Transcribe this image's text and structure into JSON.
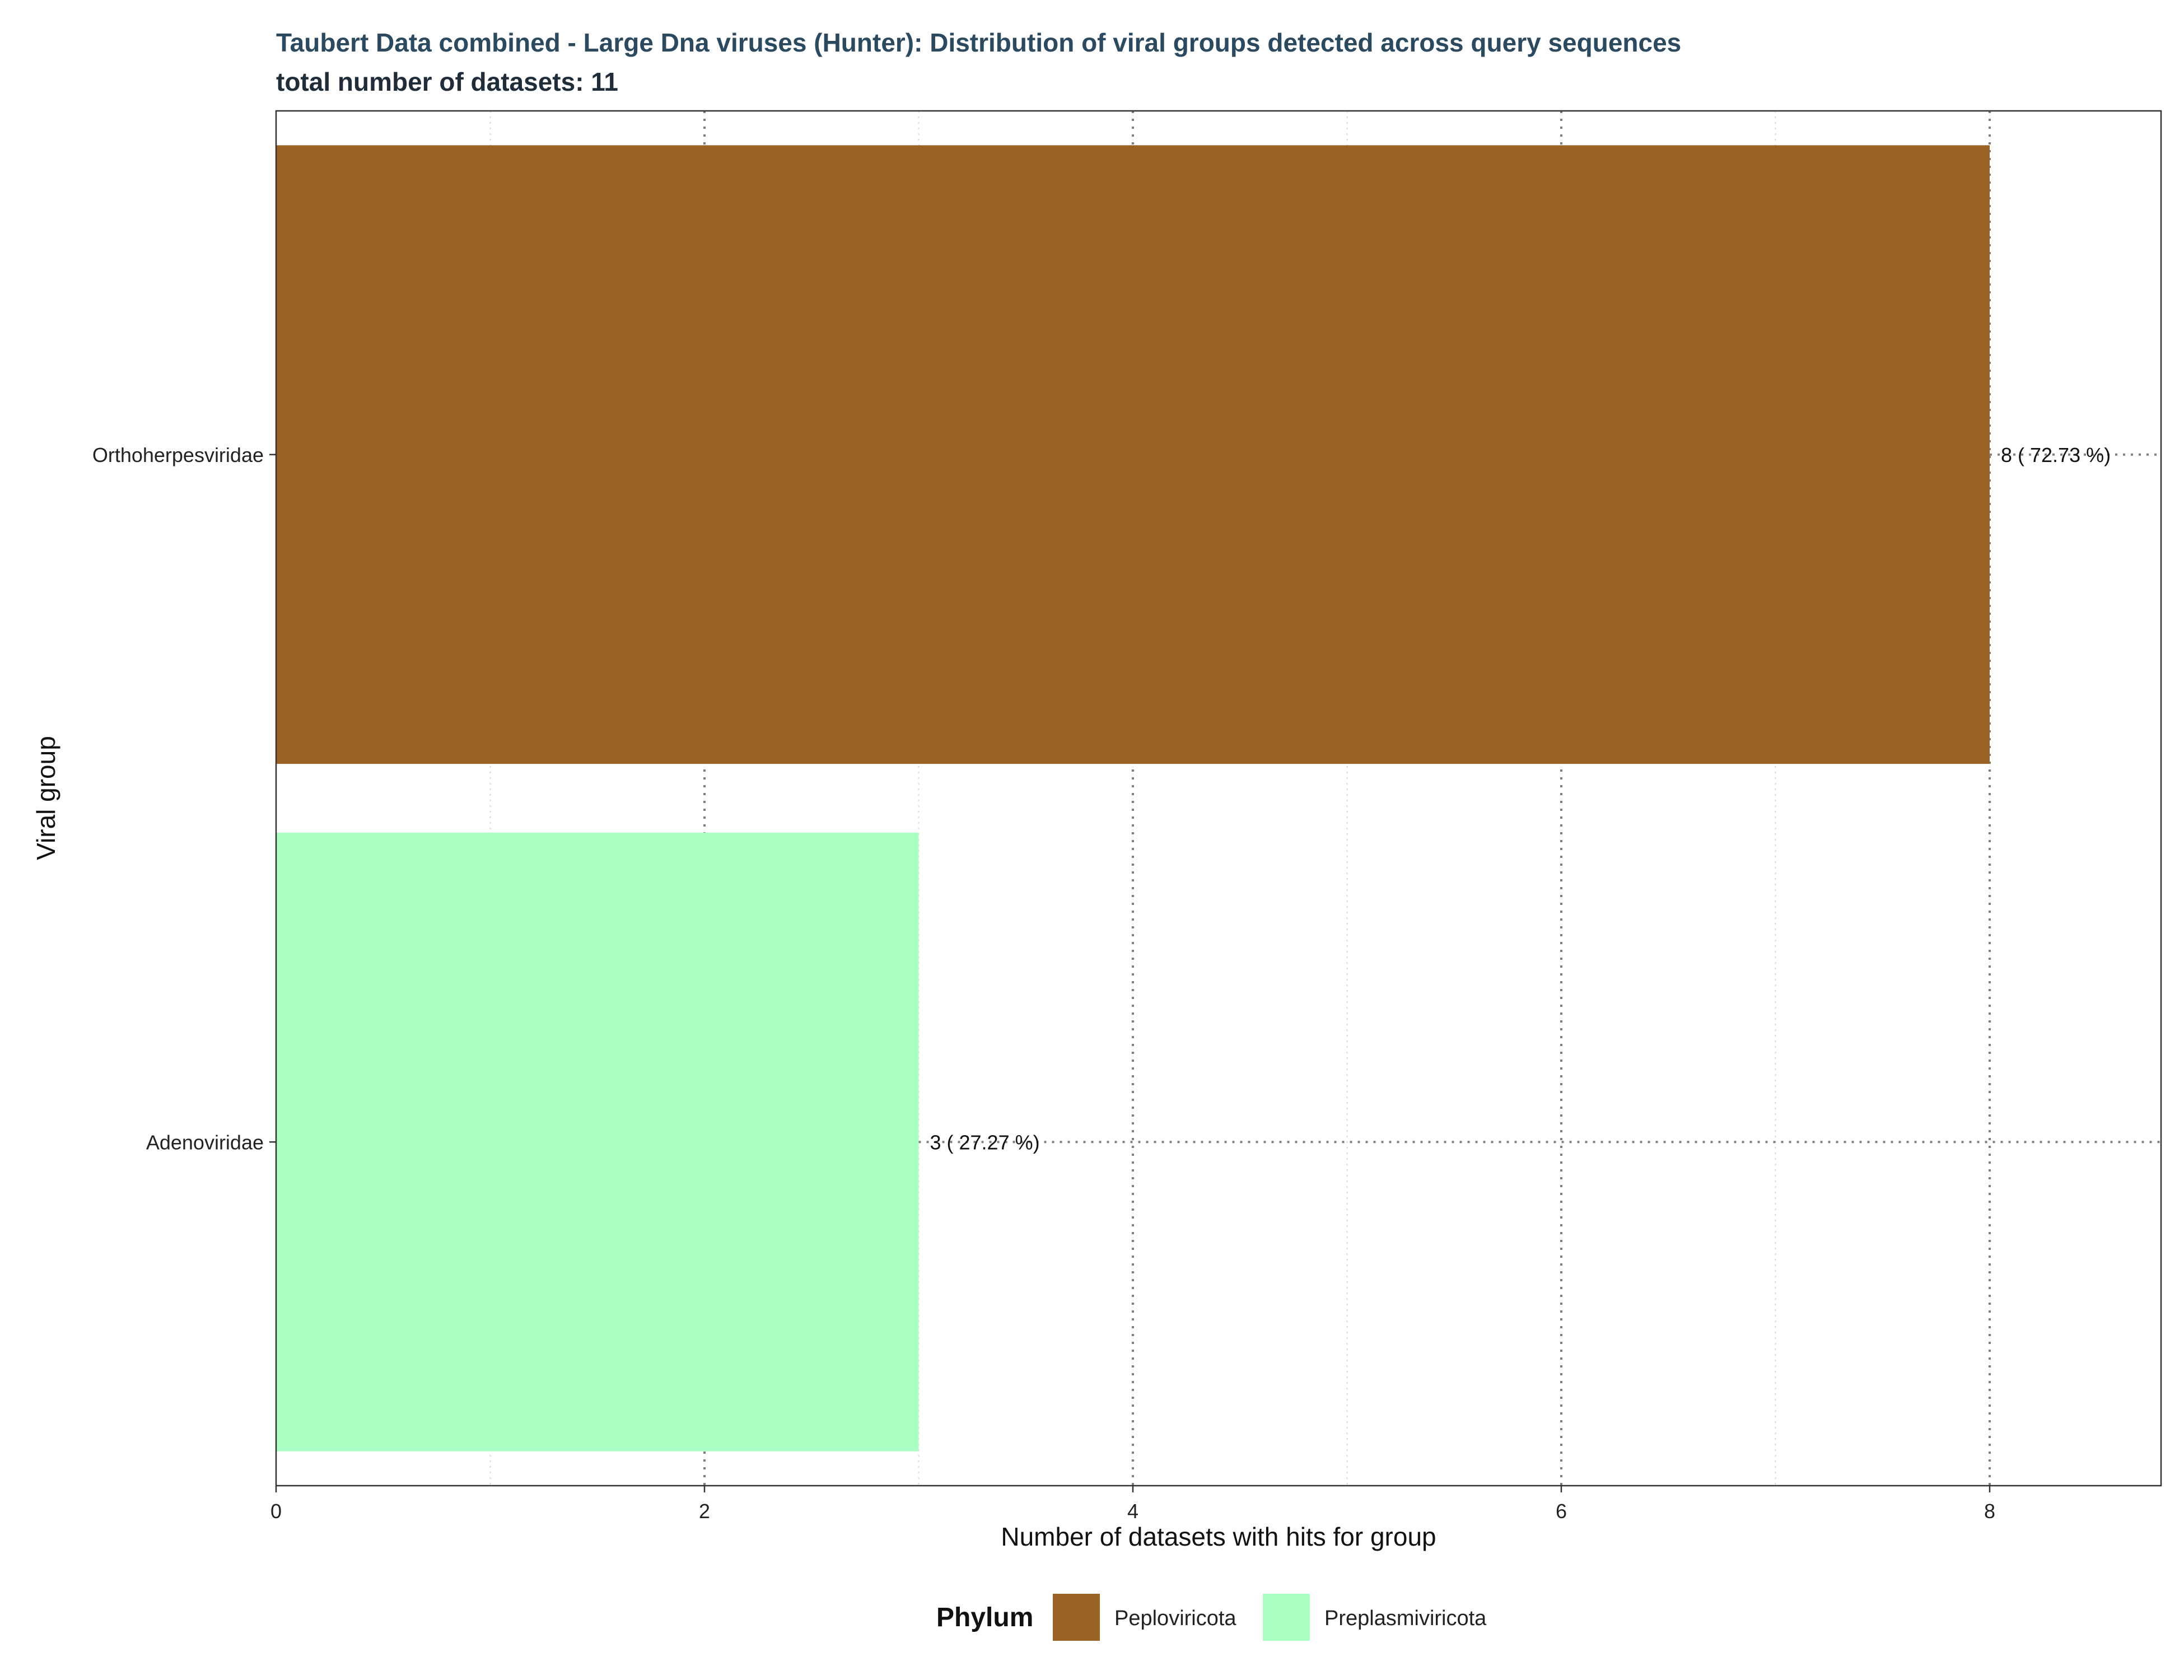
{
  "chart_data": {
    "type": "bar",
    "orientation": "horizontal",
    "title": "Taubert Data combined - Large Dna viruses (Hunter): Distribution of viral groups detected across query sequences",
    "subtitle": "total number of datasets: 11",
    "xlabel": "Number of datasets with hits for group",
    "ylabel": "Viral group",
    "xlim": [
      0,
      8.8
    ],
    "xticks": [
      0,
      2,
      4,
      6,
      8
    ],
    "categories": [
      "Orthoherpesviridae",
      "Adenoviridae"
    ],
    "values": [
      8,
      3
    ],
    "phylum": [
      "Peploviricota",
      "Preplasmiviricota"
    ],
    "data_labels": [
      "8  ( 72.73 %)",
      "3  ( 27.27 %)"
    ],
    "legend": {
      "title": "Phylum",
      "position": "bottom",
      "entries": [
        {
          "name": "Peploviricota",
          "color": "#9a6326"
        },
        {
          "name": "Preplasmiviricota",
          "color": "#aaffc3"
        }
      ]
    },
    "grid": true
  }
}
